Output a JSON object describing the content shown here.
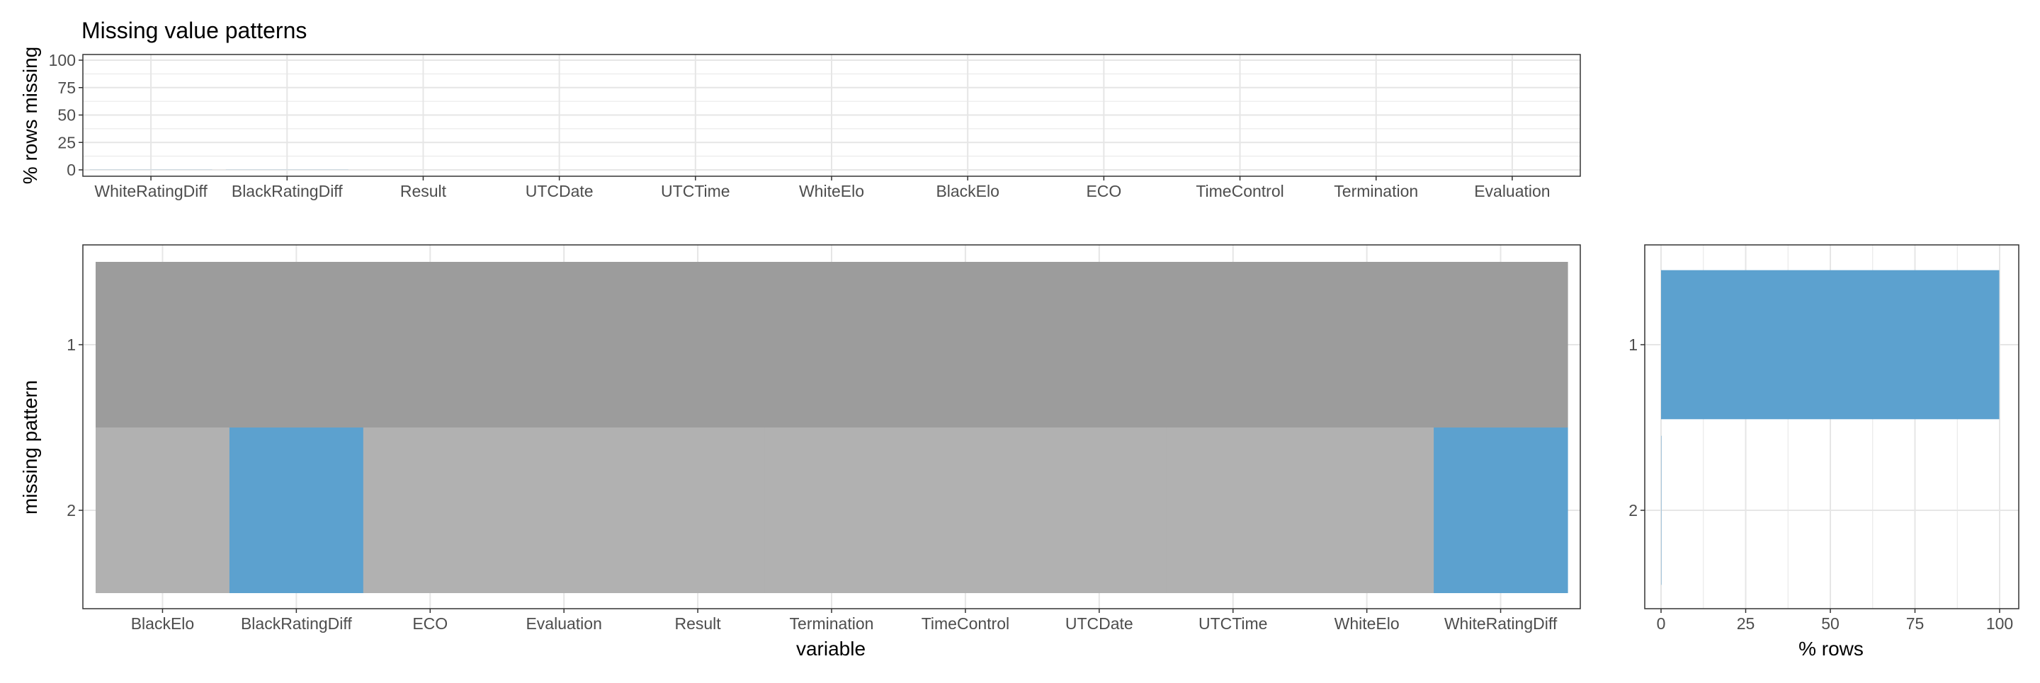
{
  "chart_data": [
    {
      "type": "bar",
      "title": "Missing value patterns",
      "ylabel": "% rows missing",
      "xlabel": "",
      "categories": [
        "WhiteRatingDiff",
        "BlackRatingDiff",
        "Result",
        "UTCDate",
        "UTCTime",
        "WhiteElo",
        "BlackElo",
        "ECO",
        "TimeControl",
        "Termination",
        "Evaluation"
      ],
      "values": [
        0.1,
        0.1,
        0,
        0,
        0,
        0,
        0,
        0,
        0,
        0,
        0
      ],
      "ylim": [
        0,
        100
      ],
      "yticks": [
        "0",
        "25",
        "50",
        "75",
        "100"
      ],
      "grid": true
    },
    {
      "type": "heatmap",
      "xlabel": "variable",
      "ylabel": "missing pattern",
      "x": [
        "BlackElo",
        "BlackRatingDiff",
        "ECO",
        "Evaluation",
        "Result",
        "Termination",
        "TimeControl",
        "UTCDate",
        "UTCTime",
        "WhiteElo",
        "WhiteRatingDiff"
      ],
      "y": [
        "1",
        "2"
      ],
      "missing": [
        [
          false,
          false,
          false,
          false,
          false,
          false,
          false,
          false,
          false,
          false,
          false
        ],
        [
          false,
          true,
          false,
          false,
          false,
          false,
          false,
          false,
          false,
          false,
          true
        ]
      ],
      "grid": true
    },
    {
      "type": "bar",
      "orientation": "horizontal",
      "xlabel": "% rows",
      "ylabel": "",
      "categories": [
        "1",
        "2"
      ],
      "values": [
        99.9,
        0.1
      ],
      "xlim": [
        0,
        100
      ],
      "xticks": [
        "0",
        "25",
        "50",
        "75",
        "100"
      ],
      "grid": true
    }
  ],
  "colors": {
    "missing": "#5ca1cf",
    "complete_row": "#9c9c9c",
    "observed": "#b1b1b1",
    "grid": "#e6e6e6",
    "frame": "#333333",
    "tick_text": "#4d4d4d"
  }
}
